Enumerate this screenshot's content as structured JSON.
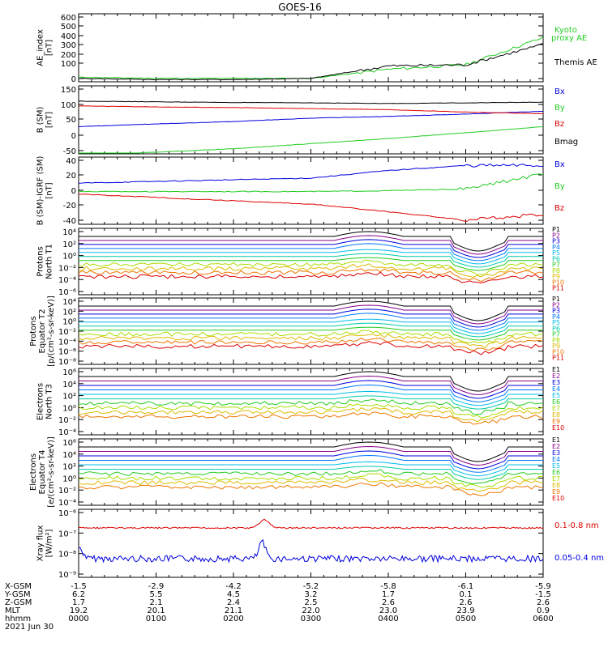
{
  "title": "GOES-16",
  "colors": {
    "black": "#000000",
    "red": "#dd0000",
    "green": "#22cc22",
    "blue": "#0000dd"
  },
  "panels": [
    {
      "id": "ae",
      "ylabel": [
        "AE_index",
        "[nT]"
      ],
      "ticks": [
        "600",
        "500",
        "400",
        "300",
        "200",
        "100",
        "0"
      ],
      "legend": [
        {
          "text": "Kyoto",
          "color": "#22cc22"
        },
        {
          "text": "proxy AE",
          "color": "#22cc22"
        },
        {
          "text": "Themis AE",
          "color": "#000000"
        }
      ]
    },
    {
      "id": "b",
      "ylabel": [
        "B (SM)",
        "[nT]"
      ],
      "ticks": [
        "150",
        "100",
        "50",
        "0",
        "-50"
      ],
      "legend": [
        {
          "text": "Bx",
          "color": "#0000dd"
        },
        {
          "text": "By",
          "color": "#22cc22"
        },
        {
          "text": "Bz",
          "color": "#dd0000"
        },
        {
          "text": "Bmag",
          "color": "#000000"
        }
      ]
    },
    {
      "id": "bigrf",
      "ylabel": [
        "B (SM)-IGRF (SM)",
        "[nT]"
      ],
      "ticks": [
        "40",
        "20",
        "0",
        "-20",
        "-40"
      ],
      "legend": [
        {
          "text": "Bx",
          "color": "#0000dd"
        },
        {
          "text": "By",
          "color": "#22cc22"
        },
        {
          "text": "Bz",
          "color": "#dd0000"
        }
      ]
    },
    {
      "id": "pn",
      "ylabel": [
        "Protons",
        "North T1"
      ],
      "ticks": [
        "10⁴",
        "10²",
        "10⁰",
        "10⁻²",
        "10⁻⁴",
        "10⁻⁶"
      ],
      "legend": [
        {
          "text": "P1",
          "color": "#000000"
        },
        {
          "text": "P2",
          "color": "#880088"
        },
        {
          "text": "P3",
          "color": "#0000dd"
        },
        {
          "text": "P4",
          "color": "#0077ff"
        },
        {
          "text": "P5",
          "color": "#00bbee"
        },
        {
          "text": "P6",
          "color": "#00ccaa"
        },
        {
          "text": "P7",
          "color": "#22cc22"
        },
        {
          "text": "P8",
          "color": "#aadd00"
        },
        {
          "text": "P9",
          "color": "#ddbb00"
        },
        {
          "text": "P10",
          "color": "#ee7700"
        },
        {
          "text": "P11",
          "color": "#dd0000"
        }
      ]
    },
    {
      "id": "pe",
      "ylabel": [
        "Protons",
        "Equator T2",
        "[p/(cm²-s-sr-keV)]"
      ],
      "ticks": [
        "10⁴",
        "10²",
        "10⁰",
        "10⁻²",
        "10⁻⁴",
        "10⁻⁶",
        "10⁻⁸"
      ],
      "legend": [
        {
          "text": "P1",
          "color": "#000000"
        },
        {
          "text": "P2",
          "color": "#880088"
        },
        {
          "text": "P3",
          "color": "#0000dd"
        },
        {
          "text": "P4",
          "color": "#0077ff"
        },
        {
          "text": "P5",
          "color": "#00bbee"
        },
        {
          "text": "P6",
          "color": "#00ccaa"
        },
        {
          "text": "P7",
          "color": "#22cc22"
        },
        {
          "text": "P8",
          "color": "#aadd00"
        },
        {
          "text": "P9",
          "color": "#ddbb00"
        },
        {
          "text": "P10",
          "color": "#ee7700"
        },
        {
          "text": "P11",
          "color": "#dd0000"
        }
      ]
    },
    {
      "id": "en",
      "ylabel": [
        "Electrons",
        "North T3"
      ],
      "ticks": [
        "10⁶",
        "10⁴",
        "10²",
        "10⁰",
        "10⁻²",
        "10⁻⁴"
      ],
      "legend": [
        {
          "text": "E1",
          "color": "#000000"
        },
        {
          "text": "E2",
          "color": "#880088"
        },
        {
          "text": "E3",
          "color": "#0000dd"
        },
        {
          "text": "E4",
          "color": "#0077ff"
        },
        {
          "text": "E5",
          "color": "#00bbee"
        },
        {
          "text": "E6",
          "color": "#22cc22"
        },
        {
          "text": "E7",
          "color": "#aadd00"
        },
        {
          "text": "E8",
          "color": "#ddbb00"
        },
        {
          "text": "E9",
          "color": "#ee7700"
        },
        {
          "text": "E10",
          "color": "#dd0000"
        }
      ]
    },
    {
      "id": "ee",
      "ylabel": [
        "Electrons",
        "Equator T4",
        "[e/(cm²-s-sr-keV)]"
      ],
      "ticks": [
        "10⁶",
        "10⁴",
        "10²",
        "10⁰",
        "10⁻²",
        "10⁻⁴"
      ],
      "legend": [
        {
          "text": "E1",
          "color": "#000000"
        },
        {
          "text": "E2",
          "color": "#880088"
        },
        {
          "text": "E3",
          "color": "#0000dd"
        },
        {
          "text": "E4",
          "color": "#0077ff"
        },
        {
          "text": "E5",
          "color": "#00bbee"
        },
        {
          "text": "E6",
          "color": "#22cc22"
        },
        {
          "text": "E7",
          "color": "#aadd00"
        },
        {
          "text": "E8",
          "color": "#ddbb00"
        },
        {
          "text": "E9",
          "color": "#ee7700"
        },
        {
          "text": "E10",
          "color": "#dd0000"
        }
      ]
    },
    {
      "id": "xray",
      "ylabel": [
        "Xray flux",
        "[W/m²]"
      ],
      "ticks": [
        "10⁻⁶",
        "10⁻⁷",
        "10⁻⁸",
        "10⁻⁹"
      ],
      "legend": [
        {
          "text": "0.1-0.8 nm",
          "color": "#dd0000"
        },
        {
          "text": "0.05-0.4 nm",
          "color": "#0000dd"
        }
      ]
    }
  ],
  "footer": {
    "rows": [
      {
        "label": "X-GSM",
        "values": [
          "-1.5",
          "-2.9",
          "-4.2",
          "-5.2",
          "-5.8",
          "-6.1",
          "-5.9"
        ]
      },
      {
        "label": "Y-GSM",
        "values": [
          "6.2",
          "5.5",
          "4.5",
          "3.2",
          "1.7",
          "0.1",
          "-1.5"
        ]
      },
      {
        "label": "Z-GSM",
        "values": [
          "1.7",
          "2.1",
          "2.4",
          "2.5",
          "2.6",
          "2.6",
          "2.6"
        ]
      },
      {
        "label": "MLT",
        "values": [
          "19.2",
          "20.1",
          "21.1",
          "22.0",
          "23.0",
          "23.9",
          "0.9"
        ]
      },
      {
        "label": "hhmm",
        "values": [
          "0000",
          "0100",
          "0200",
          "0300",
          "0400",
          "0500",
          "0600"
        ]
      }
    ],
    "date": "2021 Jun 30"
  },
  "chart_data": {
    "type": "line",
    "x": [
      "0000",
      "0100",
      "0200",
      "0300",
      "0400",
      "0500",
      "0600"
    ],
    "xlabel": "hhmm",
    "series": [
      {
        "panel": "ae",
        "name": "Kyoto proxy AE",
        "values": [
          40,
          30,
          30,
          30,
          110,
          150,
          390
        ]
      },
      {
        "panel": "ae",
        "name": "Themis AE",
        "values": [
          30,
          20,
          20,
          30,
          140,
          150,
          330
        ]
      },
      {
        "panel": "b",
        "name": "Bmag",
        "values": [
          105,
          103,
          101,
          100,
          98,
          100,
          102
        ]
      },
      {
        "panel": "b",
        "name": "Bx",
        "values": [
          30,
          38,
          45,
          55,
          60,
          67,
          75
        ]
      },
      {
        "panel": "b",
        "name": "By",
        "values": [
          -55,
          -45,
          -35,
          -20,
          -5,
          12,
          30
        ]
      },
      {
        "panel": "b",
        "name": "Bz",
        "values": [
          91,
          88,
          86,
          83,
          80,
          73,
          68
        ]
      },
      {
        "panel": "bigrf",
        "name": "Bx",
        "values": [
          9,
          11,
          13,
          15,
          24,
          30,
          30
        ]
      },
      {
        "panel": "bigrf",
        "name": "By",
        "values": [
          -1,
          -1,
          -1,
          -1,
          0,
          2,
          20
        ]
      },
      {
        "panel": "bigrf",
        "name": "Bz",
        "values": [
          -4,
          -8,
          -12,
          -16,
          -25,
          -35,
          -28
        ]
      }
    ]
  }
}
